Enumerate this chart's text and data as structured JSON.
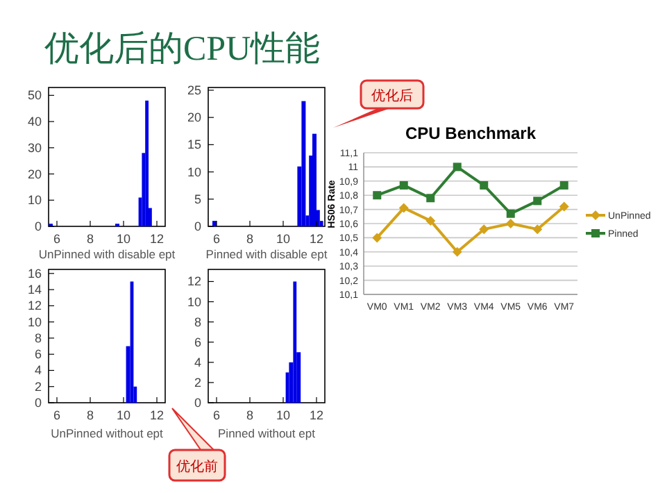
{
  "chart_data": [
    {
      "type": "histogram",
      "xlabel": "UnPinned with disable ept",
      "annotations": [
        "优化后的CPU性能"
      ],
      "color": "#0000e6",
      "xlim": [
        5.5,
        12.5
      ],
      "xticks": [
        6,
        8,
        10,
        12
      ],
      "ylim": [
        0,
        53
      ],
      "yticks": [
        0,
        10,
        20,
        30,
        40,
        50
      ],
      "grid": false,
      "bins": [
        5.5,
        5.75,
        9.5,
        9.75,
        10.9,
        11.1,
        11.3,
        11.5,
        11.7
      ],
      "values": [
        1,
        0,
        1,
        0,
        11,
        28,
        48,
        7
      ]
    },
    {
      "type": "histogram",
      "xlabel": "Pinned with disable ept",
      "annotations": [
        "优化后"
      ],
      "color": "#0000e6",
      "xlim": [
        5.5,
        12.5
      ],
      "xticks": [
        6,
        8,
        10,
        12
      ],
      "ylim": [
        0,
        25.5
      ],
      "yticks": [
        0,
        5,
        10,
        15,
        20,
        25
      ],
      "grid": false,
      "bins": [
        5.75,
        6.0,
        10.85,
        11.1,
        11.35,
        11.55,
        11.75,
        12.0,
        12.2,
        12.4
      ],
      "values": [
        1,
        0,
        11,
        23,
        2,
        13,
        17,
        3,
        1
      ]
    },
    {
      "type": "histogram",
      "xlabel": "UnPinned without ept",
      "annotations": [
        "优化前"
      ],
      "color": "#0000e6",
      "xlim": [
        5.5,
        12.5
      ],
      "xticks": [
        6,
        8,
        10,
        12
      ],
      "ylim": [
        0,
        16.5
      ],
      "yticks": [
        0,
        2,
        4,
        6,
        8,
        10,
        12,
        14,
        16
      ],
      "grid": false,
      "bins": [
        10.15,
        10.4,
        10.6,
        10.8
      ],
      "values": [
        7,
        15,
        2
      ]
    },
    {
      "type": "histogram",
      "xlabel": "Pinned without ept",
      "color": "#0000e6",
      "xlim": [
        5.5,
        12.5
      ],
      "xticks": [
        6,
        8,
        10,
        12
      ],
      "ylim": [
        0,
        13.2
      ],
      "yticks": [
        0,
        2,
        4,
        6,
        8,
        10,
        12
      ],
      "grid": false,
      "bins": [
        10.15,
        10.35,
        10.6,
        10.8,
        11.05
      ],
      "values": [
        3,
        4,
        12,
        5
      ]
    },
    {
      "type": "line",
      "title": "CPU Benchmark",
      "ylabel": "HS06 Rate",
      "categories": [
        "VM0",
        "VM1",
        "VM2",
        "VM3",
        "VM4",
        "VM5",
        "VM6",
        "VM7"
      ],
      "ylim": [
        10.1,
        11.1
      ],
      "yticks": [
        {
          "value": 10.1,
          "label": "10,1"
        },
        {
          "value": 10.2,
          "label": "10,2"
        },
        {
          "value": 10.3,
          "label": "10,3"
        },
        {
          "value": 10.4,
          "label": "10,4"
        },
        {
          "value": 10.5,
          "label": "10,5"
        },
        {
          "value": 10.6,
          "label": "10,6"
        },
        {
          "value": 10.7,
          "label": "10,7"
        },
        {
          "value": 10.8,
          "label": "10,8"
        },
        {
          "value": 10.9,
          "label": "10,9"
        },
        {
          "value": 11,
          "label": "11"
        },
        {
          "value": 11.1,
          "label": "11,1"
        }
      ],
      "grid": "y",
      "legend": "right",
      "series": [
        {
          "name": "UnPinned",
          "color": "#d4a21a",
          "marker": "diamond",
          "values": [
            10.5,
            10.71,
            10.62,
            10.4,
            10.56,
            10.6,
            10.56,
            10.72
          ]
        },
        {
          "name": "Pinned",
          "color": "#2f7d32",
          "marker": "square",
          "values": [
            10.8,
            10.87,
            10.78,
            11.0,
            10.87,
            10.67,
            10.76,
            10.87
          ]
        }
      ]
    }
  ]
}
